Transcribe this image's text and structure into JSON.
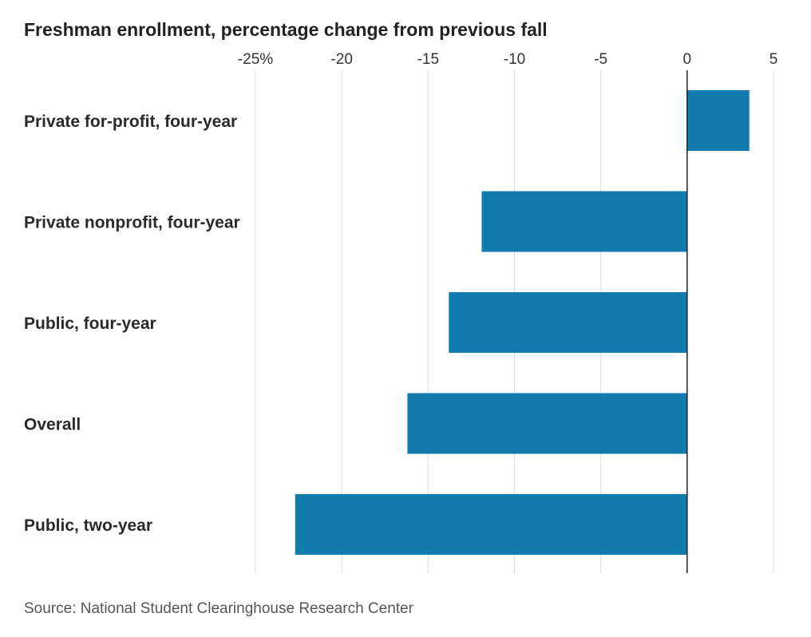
{
  "chart_data": {
    "type": "bar",
    "orientation": "horizontal",
    "title": "Freshman enrollment, percentage change from previous fall",
    "source": "Source: National Student Clearinghouse Research Center",
    "categories": [
      "Private for-profit, four-year",
      "Private nonprofit, four-year",
      "Public, four-year",
      "Overall",
      "Public, two-year"
    ],
    "values": [
      3.6,
      -11.9,
      -13.8,
      -16.2,
      -22.7
    ],
    "xlim": [
      -25,
      5
    ],
    "xticks": [
      -25,
      -20,
      -15,
      -10,
      -5,
      0,
      5
    ],
    "xtick_labels": [
      "-25%",
      "-20",
      "-15",
      "-10",
      "-5",
      "0",
      "5"
    ],
    "grid": true,
    "bar_color": "#127bad"
  }
}
